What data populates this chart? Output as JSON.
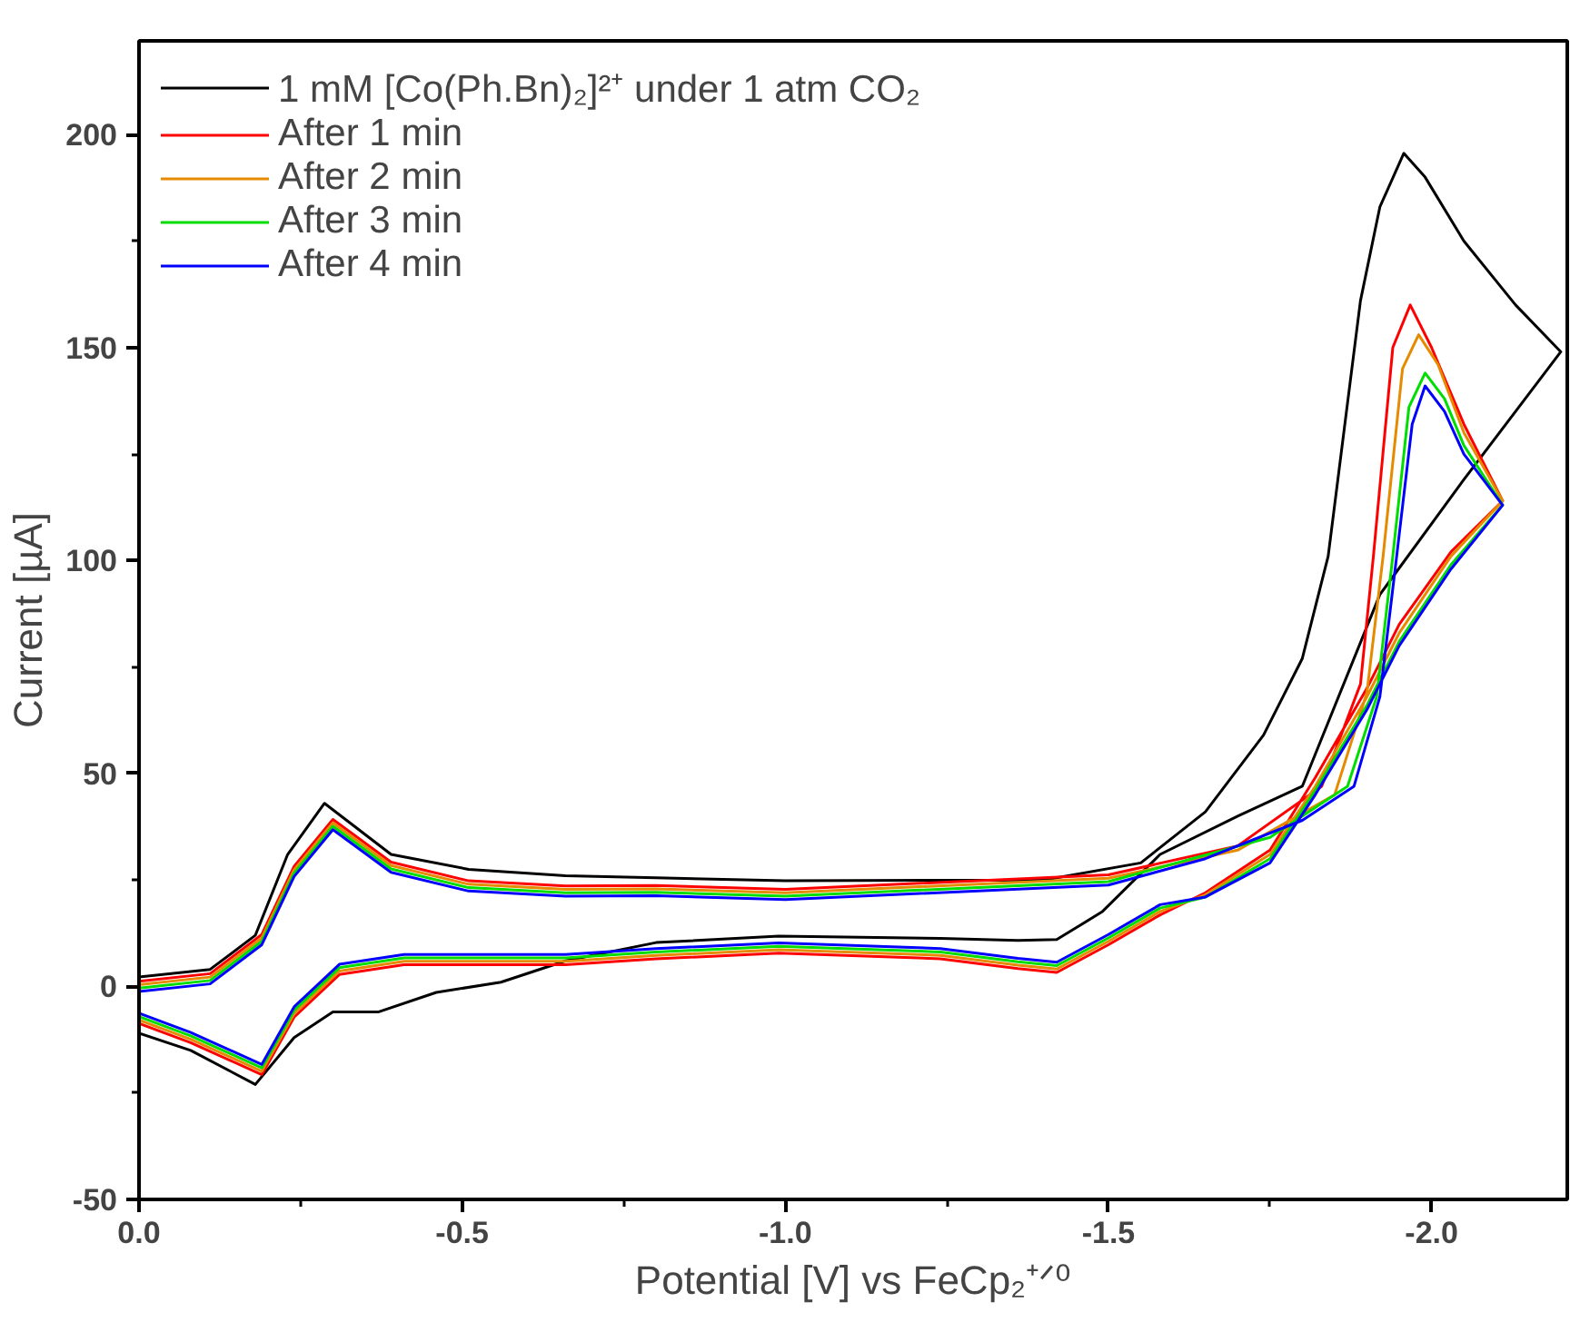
{
  "chart_data": {
    "type": "line",
    "xlabel": "Potential [V] vs FeCp₂⁺ᐟ⁰",
    "ylabel": "Current [µA]",
    "xlim": [
      0,
      -2.21
    ],
    "ylim": [
      -50,
      222
    ],
    "xticks": [
      {
        "value": 0,
        "label": "0.0"
      },
      {
        "value": -0.25,
        "label": null
      },
      {
        "value": -0.5,
        "label": "-0.5"
      },
      {
        "value": -0.75,
        "label": null
      },
      {
        "value": -1.0,
        "label": "-1.0"
      },
      {
        "value": -1.25,
        "label": null
      },
      {
        "value": -1.5,
        "label": "-1.5"
      },
      {
        "value": -1.75,
        "label": null
      },
      {
        "value": -2.0,
        "label": "-2.0"
      }
    ],
    "yticks": [
      -50,
      {
        "value": -25,
        "label": null
      },
      0,
      {
        "value": 25,
        "label": null
      },
      50,
      {
        "value": 75,
        "label": null
      },
      100,
      {
        "value": 125,
        "label": null
      },
      150,
      {
        "value": 175,
        "label": null
      },
      200
    ],
    "grid": false,
    "legend": "top left",
    "marker": "none",
    "line_style": "solid",
    "series": [
      {
        "name": "1 mM [Co(Ph.Bn)₂]²⁺ under 1 atm CO₂",
        "color": "#000000",
        "x": [
          0,
          -0.08,
          -0.18,
          -0.24,
          -0.3,
          -0.37,
          -0.46,
          -0.56,
          -0.66,
          -0.8,
          -0.99,
          -1.24,
          -1.36,
          -1.42,
          -1.49,
          -1.58,
          -1.7,
          -1.8,
          -1.92,
          -2.05,
          -2.2,
          -2.13,
          -2.05,
          -1.99,
          -1.957,
          -1.92,
          -1.89,
          -1.865,
          -1.84,
          -1.8,
          -1.74,
          -1.65,
          -1.55,
          -1.4,
          -1.0,
          -0.8,
          -0.66,
          -0.51,
          -0.39,
          -0.287,
          -0.23,
          -0.18,
          -0.11,
          0
        ],
        "values": [
          -11,
          -15,
          -23,
          -12,
          -6,
          -6,
          -1.4,
          1,
          6,
          10.3,
          11.8,
          11.3,
          10.8,
          11,
          17.5,
          31,
          40,
          47,
          92,
          119,
          149,
          160,
          175,
          190,
          195.6,
          183,
          161,
          131,
          101,
          77,
          59,
          41,
          29,
          25,
          24.8,
          25.5,
          26,
          27.5,
          31,
          43,
          31,
          12,
          4,
          2.2
        ]
      },
      {
        "name": "After 1 min",
        "color": "#ff0000",
        "x": [
          0,
          -0.08,
          -0.19,
          -0.24,
          -0.31,
          -0.41,
          -0.66,
          -0.8,
          -0.99,
          -1.24,
          -1.36,
          -1.42,
          -1.5,
          -1.58,
          -1.65,
          -1.75,
          -1.82,
          -1.9,
          -1.95,
          -2.03,
          -2.11,
          -2.05,
          -2.0,
          -1.967,
          -1.94,
          -1.91,
          -1.89,
          -1.83,
          -1.7,
          -1.5,
          -1.0,
          -0.8,
          -0.66,
          -0.51,
          -0.39,
          -0.3,
          -0.24,
          -0.19,
          -0.11,
          0
        ],
        "values": [
          -8.7,
          -13.2,
          -20.7,
          -7.2,
          2.8,
          5.1,
          5.1,
          6.5,
          7.8,
          6.5,
          4.2,
          3.3,
          9.8,
          16.8,
          22,
          32,
          49,
          70,
          85,
          102,
          114,
          132,
          150,
          160,
          150,
          101,
          71,
          47,
          33,
          26.2,
          22.8,
          23.7,
          23.6,
          24.8,
          29.2,
          39.2,
          28.2,
          12.2,
          3.0,
          1.2
        ]
      },
      {
        "name": "After 2 min",
        "color": "#e68a00",
        "x": [
          0,
          -0.08,
          -0.19,
          -0.24,
          -0.31,
          -0.41,
          -0.66,
          -0.8,
          -0.99,
          -1.24,
          -1.36,
          -1.42,
          -1.5,
          -1.58,
          -1.65,
          -1.75,
          -1.82,
          -1.9,
          -1.95,
          -2.03,
          -2.11,
          -2.05,
          -2.01,
          -1.98,
          -1.955,
          -1.925,
          -1.9,
          -1.85,
          -1.7,
          -1.5,
          -1.0,
          -0.8,
          -0.66,
          -0.51,
          -0.39,
          -0.3,
          -0.24,
          -0.19,
          -0.11,
          0
        ],
        "values": [
          -7.9,
          -12.4,
          -19.9,
          -6.4,
          3.6,
          5.9,
          5.9,
          7.3,
          8.6,
          7.3,
          5.0,
          4.1,
          10.6,
          17.6,
          21.5,
          31,
          47,
          68,
          83,
          101,
          114,
          130,
          146,
          153,
          145,
          101,
          69,
          45,
          32,
          25.4,
          22.0,
          22.9,
          22.8,
          24.0,
          28.4,
          38.4,
          27.4,
          11.4,
          2.2,
          0.4
        ]
      },
      {
        "name": "After 3 min",
        "color": "#00dd00",
        "x": [
          0,
          -0.08,
          -0.19,
          -0.24,
          -0.31,
          -0.41,
          -0.66,
          -0.8,
          -0.99,
          -1.24,
          -1.36,
          -1.42,
          -1.5,
          -1.58,
          -1.65,
          -1.75,
          -1.82,
          -1.9,
          -1.95,
          -2.03,
          -2.11,
          -2.05,
          -2.02,
          -1.99,
          -1.965,
          -1.94,
          -1.915,
          -1.87,
          -1.75,
          -1.5,
          -1.0,
          -0.8,
          -0.66,
          -0.51,
          -0.39,
          -0.3,
          -0.24,
          -0.19,
          -0.11,
          0
        ],
        "values": [
          -7.1,
          -11.6,
          -19.1,
          -5.6,
          4.4,
          6.7,
          6.7,
          8.1,
          9.4,
          8.1,
          5.8,
          4.9,
          11.4,
          18.4,
          21,
          30,
          46,
          66,
          81,
          99,
          113,
          127,
          138,
          144,
          136,
          101,
          68,
          47,
          35,
          24.6,
          21.2,
          22.1,
          22.0,
          23.2,
          27.6,
          37.6,
          26.6,
          10.6,
          1.4,
          -0.4
        ]
      },
      {
        "name": "After 4 min",
        "color": "#0000ff",
        "x": [
          0,
          -0.08,
          -0.19,
          -0.24,
          -0.31,
          -0.41,
          -0.66,
          -0.8,
          -0.99,
          -1.24,
          -1.36,
          -1.42,
          -1.5,
          -1.58,
          -1.65,
          -1.75,
          -1.82,
          -1.9,
          -1.95,
          -2.03,
          -2.11,
          -2.05,
          -2.02,
          -1.99,
          -1.97,
          -1.946,
          -1.92,
          -1.88,
          -1.8,
          -1.65,
          -1.5,
          -1.0,
          -0.8,
          -0.66,
          -0.51,
          -0.39,
          -0.3,
          -0.24,
          -0.19,
          -0.11,
          0
        ],
        "values": [
          -6.3,
          -10.8,
          -18.3,
          -4.8,
          5.2,
          7.5,
          7.5,
          8.9,
          10.2,
          8.9,
          6.6,
          5.7,
          12.2,
          19.2,
          21,
          29,
          45,
          65,
          80,
          98,
          113,
          125,
          135,
          141,
          132,
          101,
          68,
          47,
          39,
          30,
          23.8,
          20.4,
          21.3,
          21.2,
          22.4,
          26.8,
          36.8,
          25.8,
          9.8,
          0.6,
          -1.2
        ]
      }
    ]
  }
}
